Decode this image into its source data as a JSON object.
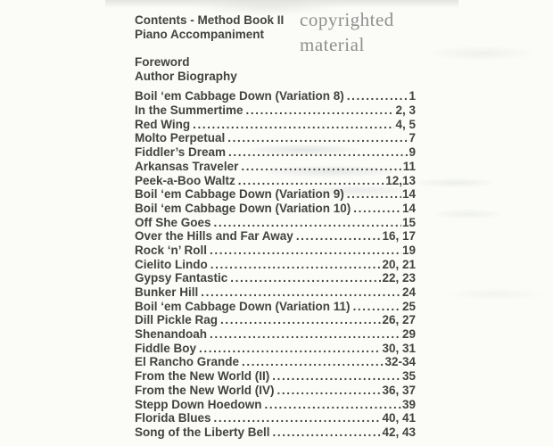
{
  "header": {
    "title": "Contents - Method Book II",
    "subtitle": "Piano Accompaniment"
  },
  "watermark": {
    "text": "copyrighted material"
  },
  "front_matter": [
    {
      "label": "Foreword"
    },
    {
      "label": "Author Biography"
    }
  ],
  "toc": {
    "entries": [
      {
        "title": "Boil ‘em Cabbage Down (Variation 8)",
        "pages": "1"
      },
      {
        "title": "In the Summertime",
        "pages": "2, 3"
      },
      {
        "title": "Red Wing",
        "pages": "4, 5"
      },
      {
        "title": "Molto Perpetual",
        "pages": "7"
      },
      {
        "title": "Fiddler’s Dream",
        "pages": "9"
      },
      {
        "title": "Arkansas Traveler",
        "pages": "11"
      },
      {
        "title": "Peek-a-Boo Waltz",
        "pages": "12,13"
      },
      {
        "title": "Boil ‘em Cabbage Down (Variation 9)",
        "pages": "14"
      },
      {
        "title": "Boil ‘em Cabbage Down (Variation 10)",
        "pages": "14"
      },
      {
        "title": "Off She Goes",
        "pages": "15"
      },
      {
        "title": "Over the Hills and Far Away",
        "pages": "16, 17"
      },
      {
        "title": "Rock ‘n’ Roll",
        "pages": "19"
      },
      {
        "title": "Cielito Lindo",
        "pages": "20, 21"
      },
      {
        "title": "Gypsy Fantastic",
        "pages": "22, 23"
      },
      {
        "title": "Bunker Hill",
        "pages": "24"
      },
      {
        "title": "Boil ‘em Cabbage Down (Variation 11)",
        "pages": "25"
      },
      {
        "title": "Dill Pickle Rag",
        "pages": "26, 27"
      },
      {
        "title": "Shenandoah",
        "pages": "29"
      },
      {
        "title": "Fiddle Boy",
        "pages": "30, 31"
      },
      {
        "title": "El Rancho Grande",
        "pages": "32-34"
      },
      {
        "title": "From the New World (II)",
        "pages": "35"
      },
      {
        "title": "From the New World (IV)",
        "pages": "36, 37"
      },
      {
        "title": "Stepp Down Hoedown",
        "pages": "39"
      },
      {
        "title": "Florida Blues",
        "pages": "40, 41"
      },
      {
        "title": "Song of the Liberty Bell",
        "pages": "42, 43"
      }
    ]
  },
  "colors": {
    "text": "#42423f",
    "watermark": "#8f8f8f",
    "background": "#fbfbf8"
  }
}
